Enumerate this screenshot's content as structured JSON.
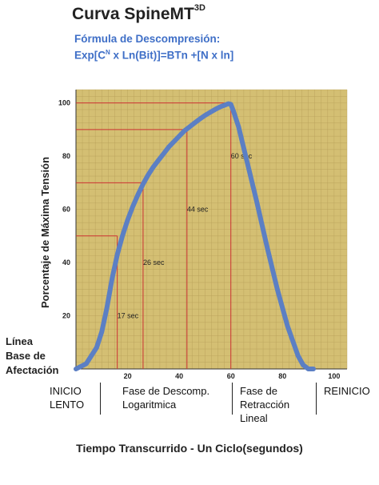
{
  "header": {
    "title_main": "Curva SpineMT",
    "title_sup": "3D",
    "formula_line1": "Fórmula de Descompresión:",
    "formula_line2_a": "Exp[C",
    "formula_line2_sup": "N",
    "formula_line2_b": " x Ln(Bit)]=BTn +[N x ln]"
  },
  "chart_data": {
    "type": "line",
    "ylabel": "Porcentaje de Máxima Tensión",
    "xlabel": "Tiempo Transcurrido - Un Ciclo(segundos)",
    "xlim": [
      0,
      105
    ],
    "ylim": [
      0,
      105
    ],
    "x_ticks": [
      20,
      40,
      60,
      80,
      100
    ],
    "y_ticks": [
      20,
      40,
      60,
      80,
      100
    ],
    "grid": true,
    "series": [
      {
        "color": "#5b7fc4",
        "x": [
          0,
          4,
          8,
          10,
          12,
          14,
          16,
          18,
          20,
          22,
          24,
          26,
          28,
          30,
          32,
          34,
          36,
          38,
          40,
          42,
          44,
          46,
          48,
          50,
          52,
          54,
          56,
          58,
          59,
          60,
          61,
          63,
          66,
          70,
          74,
          78,
          82,
          86,
          88,
          90,
          92
        ],
        "y": [
          0,
          2,
          8,
          14,
          23,
          34,
          43,
          50,
          56,
          61,
          65.5,
          69.5,
          73,
          76,
          78.5,
          81,
          83.5,
          85.5,
          87.5,
          89.5,
          91,
          92.5,
          94,
          95.3,
          96.5,
          97.6,
          98.6,
          99.3,
          99.7,
          99.5,
          97,
          91,
          79,
          63,
          46,
          30,
          16,
          5,
          1.5,
          0,
          0
        ]
      }
    ],
    "annotations": [
      {
        "label": "17 sec",
        "x": 16,
        "y": 20,
        "ref_x": 16,
        "ref_y": 50
      },
      {
        "label": "26 sec",
        "x": 26,
        "y": 40,
        "ref_x": 26,
        "ref_y": 70
      },
      {
        "label": "44 sec",
        "x": 43,
        "y": 60,
        "ref_x": 43,
        "ref_y": 90
      },
      {
        "label": "60 sec",
        "x": 60,
        "y": 80,
        "ref_x": 60,
        "ref_y": 100
      }
    ],
    "background": "#d4bf73",
    "grid_color": "#b8a05a",
    "guide_color": "#cc3333"
  },
  "baseline_label": [
    "Línea",
    "Base de",
    "Afectación"
  ],
  "phases": [
    {
      "lines": [
        "INICIO",
        "LENTO"
      ]
    },
    {
      "lines": [
        "Fase de Descomp.",
        "Logaritmica"
      ]
    },
    {
      "lines": [
        "Fase de",
        "Retracción",
        "Lineal"
      ]
    },
    {
      "lines": [
        "REINICIO"
      ]
    }
  ]
}
